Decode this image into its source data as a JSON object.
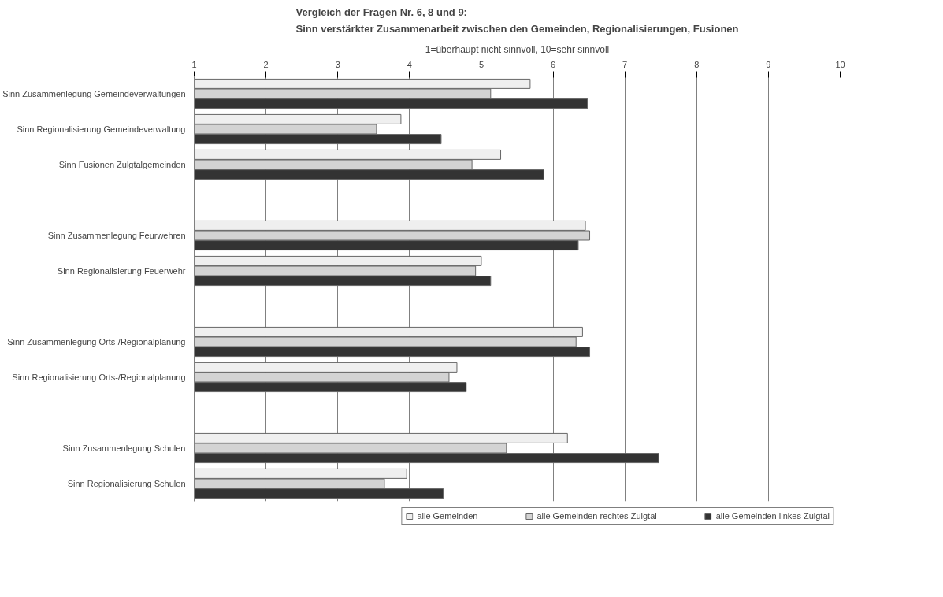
{
  "chart_data": {
    "type": "bar",
    "orientation": "horizontal",
    "title": "Vergleich der Fragen Nr. 6, 8 und 9:\nSinn verstärkter Zusammenarbeit zwischen den Gemeinden, Regionalisierungen, Fusionen",
    "subtitle": "1=überhaupt nicht sinnvoll, 10=sehr sinnvoll",
    "categories": [
      "Sinn Zusammenlegung Gemeindeverwaltungen",
      "Sinn Regionalisierung Gemeindeverwaltung",
      "Sinn Fusionen Zulgtalgemeinden",
      null,
      "Sinn Zusammenlegung Feurwehren",
      "Sinn Regionalisierung Feuerwehr",
      null,
      "Sinn Zusammenlegung Orts-/Regionalplanung",
      "Sinn Regionalisierung Orts-/Regionalplanung",
      null,
      "Sinn Zusammenlegung Schulen",
      "Sinn Regionalisierung Schulen"
    ],
    "series": [
      {
        "name": "alle Gemeinden",
        "color": "#efefef",
        "values": [
          5.68,
          3.88,
          5.27,
          null,
          6.45,
          5.0,
          null,
          6.41,
          4.66,
          null,
          6.2,
          3.96
        ]
      },
      {
        "name": "alle Gemeinden rechtes Zulgtal",
        "color": "#d3d3d3",
        "values": [
          5.13,
          3.54,
          4.87,
          null,
          6.51,
          4.92,
          null,
          6.32,
          4.55,
          null,
          5.35,
          3.65
        ]
      },
      {
        "name": "alle Gemeinden linkes Zulgtal",
        "color": "#333333",
        "values": [
          6.48,
          4.44,
          5.87,
          null,
          6.35,
          5.13,
          null,
          6.51,
          4.79,
          null,
          7.47,
          4.47
        ]
      }
    ],
    "xlim": [
      1,
      10
    ],
    "xticks": [
      1,
      2,
      3,
      4,
      5,
      6,
      7,
      8,
      9,
      10
    ],
    "grid": "x",
    "legend": "bottom"
  }
}
